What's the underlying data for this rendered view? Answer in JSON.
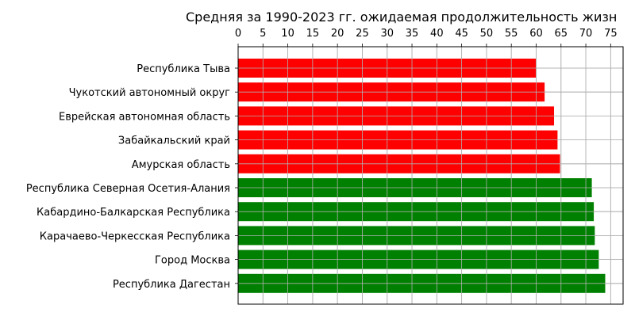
{
  "chart_data": {
    "type": "bar",
    "orientation": "horizontal",
    "title": "Средняя за 1990-2023 гг. ожидаемая продолжительность жизн",
    "xlabel": "",
    "ylabel": "",
    "x_axis_position": "top",
    "xlim": [
      0,
      77.5
    ],
    "xticks": [
      "0",
      "5",
      "10",
      "15",
      "20",
      "25",
      "30",
      "35",
      "40",
      "45",
      "50",
      "55",
      "60",
      "65",
      "70",
      "75"
    ],
    "grid": true,
    "categories": [
      "Республика Тыва",
      "Чукотский автономный округ",
      "Еврейская автономная область",
      "Забайкальский край",
      "Амурская область",
      "Республика Северная Осетия-Алания",
      "Кабардино-Балкарская Республика",
      "Карачаево-Черкесская Республика",
      "Город Москва",
      "Республика Дагестан"
    ],
    "values": [
      60.0,
      61.7,
      63.6,
      64.3,
      64.8,
      71.2,
      71.6,
      71.8,
      72.6,
      73.9
    ],
    "colors": [
      "#ff0000",
      "#ff0000",
      "#ff0000",
      "#ff0000",
      "#ff0000",
      "#008000",
      "#008000",
      "#008000",
      "#008000",
      "#008000"
    ]
  }
}
